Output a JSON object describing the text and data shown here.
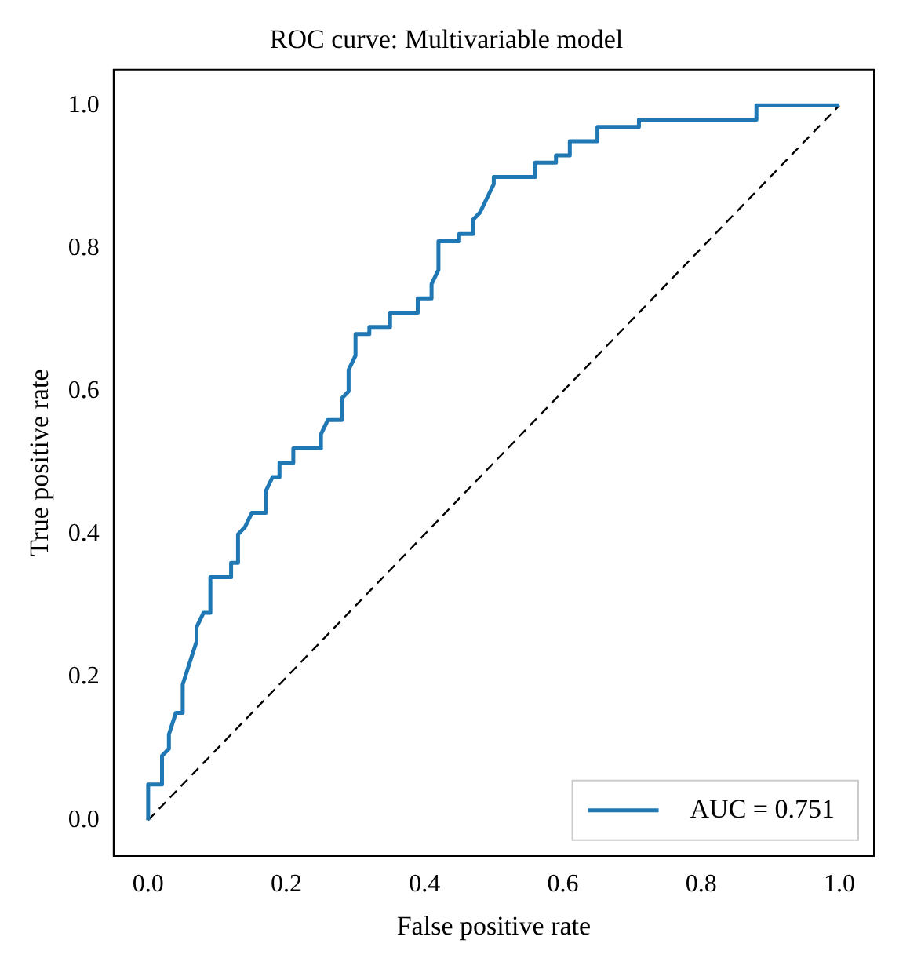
{
  "chart_data": {
    "type": "line",
    "title": "ROC curve: Multivariable model",
    "xlabel": "False positive rate",
    "ylabel": "True positive rate",
    "xlim": [
      -0.05,
      1.05
    ],
    "ylim": [
      -0.05,
      1.05
    ],
    "xticks": [
      {
        "value": 0,
        "label": "0.0"
      },
      0.2,
      0.4,
      0.6,
      0.8,
      {
        "value": 1,
        "label": "1.0"
      }
    ],
    "yticks": [
      {
        "value": 0,
        "label": "0.0"
      },
      0.2,
      0.4,
      0.6,
      0.8,
      {
        "value": 1,
        "label": "1.0"
      }
    ],
    "legend": "bottom right",
    "grid": false,
    "marker": "none",
    "series": [
      {
        "name": "AUC = 0.751",
        "color": "#1f77b4",
        "line_style": "solid",
        "x": [
          0,
          0,
          0.02,
          0.02,
          0.03,
          0.03,
          0.04,
          0.05,
          0.05,
          0.06,
          0.07,
          0.07,
          0.08,
          0.09,
          0.09,
          0.12,
          0.12,
          0.13,
          0.13,
          0.14,
          0.15,
          0.17,
          0.17,
          0.18,
          0.19,
          0.19,
          0.21,
          0.21,
          0.25,
          0.25,
          0.26,
          0.28,
          0.28,
          0.29,
          0.29,
          0.3,
          0.3,
          0.32,
          0.32,
          0.35,
          0.35,
          0.39,
          0.39,
          0.41,
          0.41,
          0.42,
          0.42,
          0.45,
          0.45,
          0.47,
          0.47,
          0.48,
          0.49,
          0.5,
          0.5,
          0.56,
          0.56,
          0.59,
          0.59,
          0.61,
          0.61,
          0.65,
          0.65,
          0.71,
          0.71,
          0.88,
          0.88,
          1
        ],
        "values": [
          0,
          0.05,
          0.05,
          0.09,
          0.1,
          0.12,
          0.15,
          0.15,
          0.19,
          0.22,
          0.25,
          0.27,
          0.29,
          0.29,
          0.34,
          0.34,
          0.36,
          0.36,
          0.4,
          0.41,
          0.43,
          0.43,
          0.46,
          0.48,
          0.48,
          0.5,
          0.5,
          0.52,
          0.52,
          0.54,
          0.56,
          0.56,
          0.59,
          0.6,
          0.63,
          0.65,
          0.68,
          0.68,
          0.69,
          0.69,
          0.71,
          0.71,
          0.73,
          0.73,
          0.75,
          0.77,
          0.81,
          0.81,
          0.82,
          0.82,
          0.84,
          0.85,
          0.87,
          0.89,
          0.9,
          0.9,
          0.92,
          0.92,
          0.93,
          0.93,
          0.95,
          0.95,
          0.97,
          0.97,
          0.98,
          0.98,
          1,
          1
        ]
      },
      {
        "type": "line",
        "color": "#000000",
        "line_style": "dashed",
        "x": [
          0,
          1
        ],
        "values": [
          0,
          1
        ]
      }
    ]
  }
}
